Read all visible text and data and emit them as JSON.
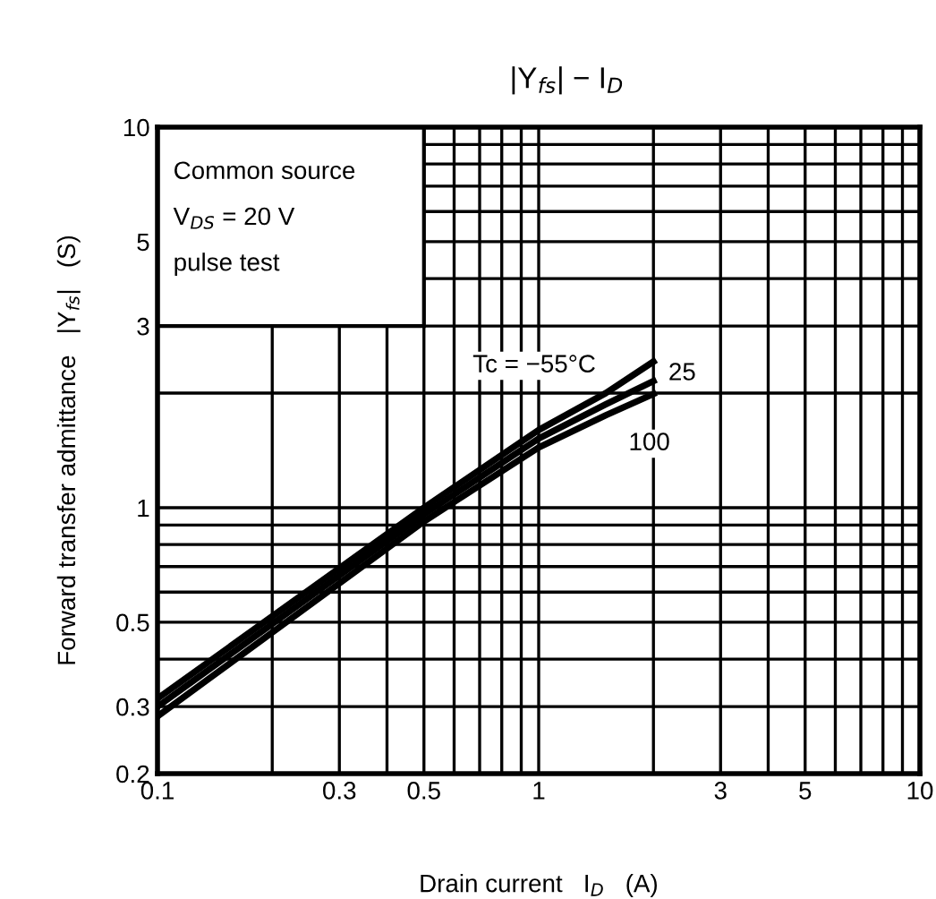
{
  "chart_data": {
    "type": "line",
    "title": "|Y$_{fs}$| − I$_{D}$",
    "xlabel": "Drain current   I$_{D}$   (A)",
    "ylabel": "Forward transfer admittance   |Y$_{fs}$|   (S)",
    "log": "xy",
    "xlim": [
      0.1,
      10
    ],
    "ylim": [
      0.2,
      10
    ],
    "xticks": [
      0.1,
      {
        "value": 0.2,
        "label": null
      },
      0.3,
      {
        "value": 0.4,
        "label": null
      },
      0.5,
      {
        "value": 0.6,
        "label": null
      },
      {
        "value": 0.7,
        "label": null
      },
      {
        "value": 0.8,
        "label": null
      },
      {
        "value": 0.9,
        "label": null
      },
      1,
      {
        "value": 2,
        "label": null
      },
      3,
      {
        "value": 4,
        "label": null
      },
      5,
      {
        "value": 6,
        "label": null
      },
      {
        "value": 7,
        "label": null
      },
      {
        "value": 8,
        "label": null
      },
      {
        "value": 9,
        "label": null
      },
      10
    ],
    "yticks": [
      0.2,
      0.3,
      {
        "value": 0.4,
        "label": null
      },
      0.5,
      {
        "value": 0.6,
        "label": null
      },
      {
        "value": 0.7,
        "label": null
      },
      {
        "value": 0.8,
        "label": null
      },
      {
        "value": 0.9,
        "label": null
      },
      1,
      {
        "value": 2,
        "label": null
      },
      3,
      {
        "value": 4,
        "label": null
      },
      5,
      {
        "value": 6,
        "label": null
      },
      {
        "value": 7,
        "label": null
      },
      {
        "value": 8,
        "label": null
      },
      {
        "value": 9,
        "label": null
      },
      10
    ],
    "grid": true,
    "legend": false,
    "marker": "none",
    "line_style": "solid",
    "x": [
      0.1,
      0.5,
      1,
      1.5,
      2
    ],
    "series": [
      {
        "name": "Tc = −55°C",
        "color": "#000000",
        "values": [
          0.315,
          1.0,
          1.6,
          2.0,
          2.42
        ]
      },
      {
        "name": "25",
        "color": "#000000",
        "values": [
          0.3,
          0.96,
          1.52,
          1.87,
          2.15
        ]
      },
      {
        "name": "100",
        "color": "#000000",
        "values": [
          0.283,
          0.92,
          1.44,
          1.75,
          1.99
        ]
      }
    ],
    "annotations": [
      "Common source",
      "V$_{DS}$ = 20 V",
      "pulse test"
    ]
  }
}
